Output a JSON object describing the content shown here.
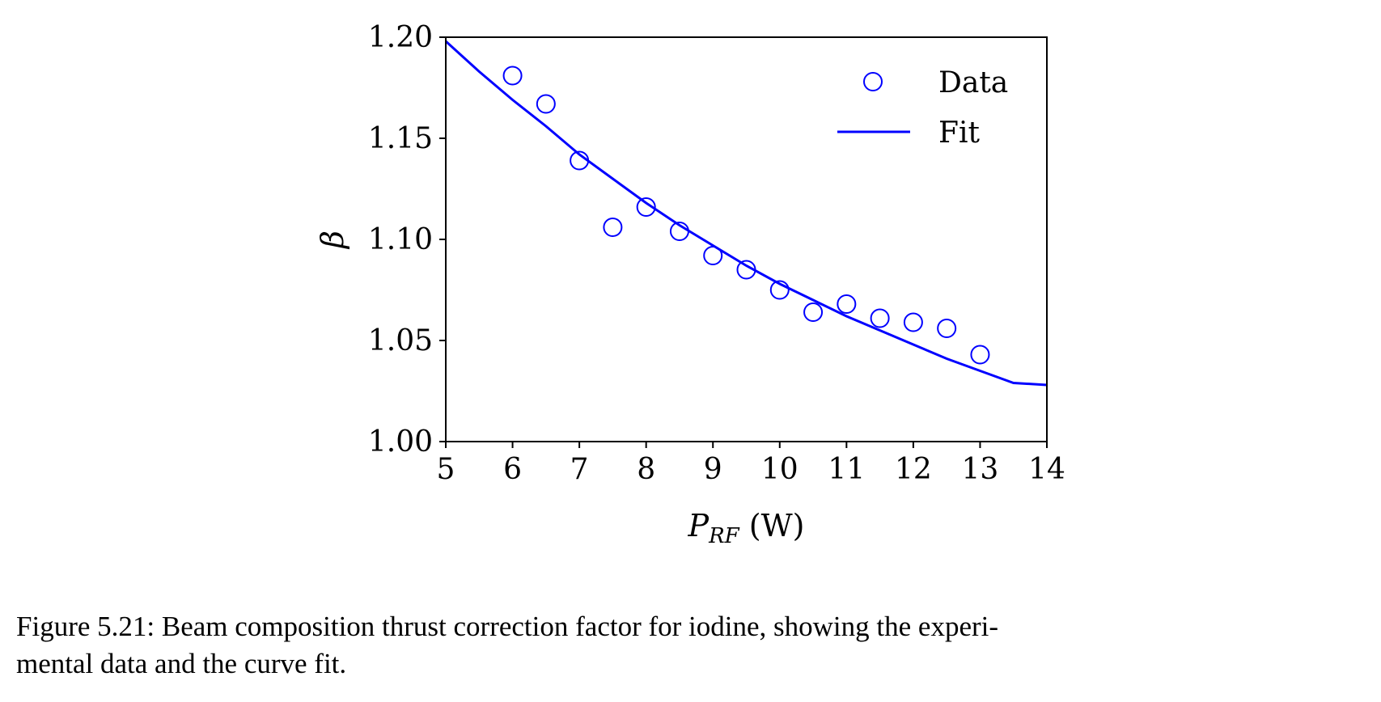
{
  "chart_data": {
    "type": "scatter",
    "xlabel": {
      "main": "P",
      "sub": "RF",
      "unit": " (W)"
    },
    "ylabel": "β",
    "xlim": [
      5,
      14
    ],
    "ylim": [
      1.0,
      1.2
    ],
    "xticks": [
      "5",
      "6",
      "7",
      "8",
      "9",
      "10",
      "11",
      "12",
      "13",
      "14"
    ],
    "yticks": [
      "1.00",
      "1.05",
      "1.10",
      "1.15",
      "1.20"
    ],
    "grid": false,
    "legend_position": "top-right",
    "color": "#0000ff",
    "series": [
      {
        "name": "Data",
        "kind": "markers",
        "marker": "open-circle",
        "x": [
          6,
          6.5,
          7,
          7.5,
          8,
          8.5,
          9,
          9.5,
          10,
          10.5,
          11,
          11.5,
          12,
          12.5,
          13
        ],
        "y": [
          1.181,
          1.167,
          1.139,
          1.106,
          1.116,
          1.104,
          1.092,
          1.085,
          1.075,
          1.064,
          1.068,
          1.061,
          1.059,
          1.056,
          1.043
        ]
      },
      {
        "name": "Fit",
        "kind": "line",
        "x": [
          5,
          5.5,
          6,
          6.5,
          7,
          7.5,
          8,
          8.5,
          9,
          9.5,
          10,
          10.5,
          11,
          11.5,
          12,
          12.5,
          13,
          13.5,
          14
        ],
        "y": [
          1.198,
          1.183,
          1.169,
          1.156,
          1.142,
          1.13,
          1.118,
          1.107,
          1.097,
          1.087,
          1.078,
          1.07,
          1.062,
          1.055,
          1.048,
          1.041,
          1.035,
          1.029,
          1.028
        ]
      }
    ]
  },
  "caption": {
    "line1": "Figure 5.21: Beam composition thrust correction factor for iodine, showing the experi-",
    "line2": "mental data and the curve fit."
  }
}
